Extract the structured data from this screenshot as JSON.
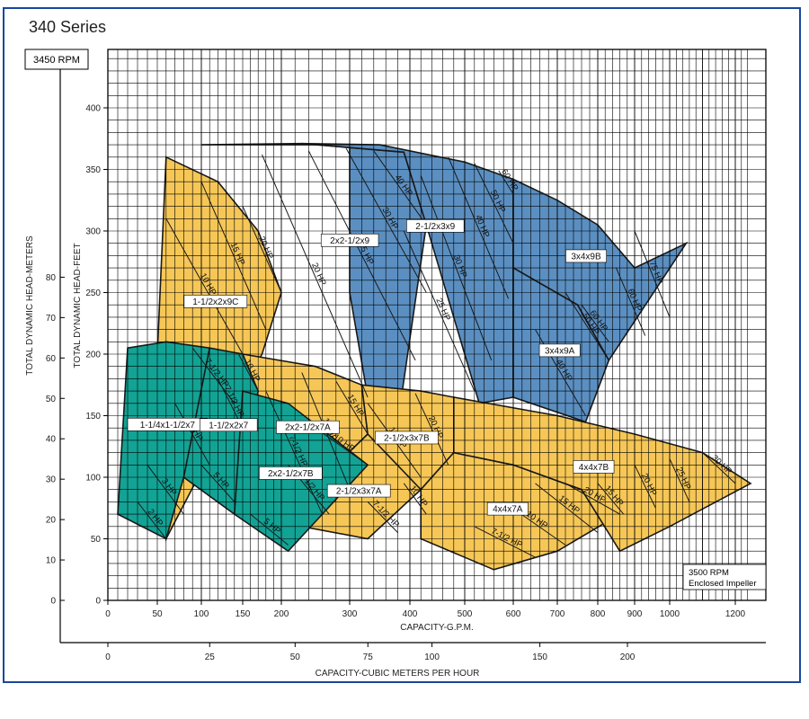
{
  "page": {
    "title": "340 Series"
  },
  "chart_data": {
    "type": "area",
    "title": "340 Series",
    "speed_label": "3450 RPM",
    "note_lines": [
      "3500 RPM",
      "Enclosed Impeller"
    ],
    "colors": {
      "frame": "#17479e",
      "blue": "#5b8fc1",
      "yellow": "#f6c757",
      "teal": "#12a395",
      "grid": "#000000"
    },
    "axes": {
      "x_gpm": {
        "label": "CAPACITY-G.P.M.",
        "range": [
          0,
          1250
        ],
        "ticks": [
          0,
          50,
          100,
          150,
          200,
          300,
          400,
          500,
          600,
          700,
          800,
          900,
          1000,
          1200
        ],
        "scale": "custom"
      },
      "x_m3h": {
        "label": "CAPACITY-CUBIC METERS PER HOUR",
        "ticks": [
          0,
          25,
          50,
          75,
          100,
          150,
          200
        ]
      },
      "y_feet": {
        "label": "TOTAL DYNAMIC HEAD-FEET",
        "range": [
          0,
          400
        ],
        "ticks": [
          0,
          50,
          100,
          150,
          200,
          250,
          300,
          350,
          400
        ]
      },
      "y_meters": {
        "label": "TOTAL DYNAMIC HEAD-METERS",
        "ticks": [
          0,
          10,
          20,
          30,
          40,
          50,
          60,
          70,
          80
        ]
      },
      "grid": true
    },
    "zones": [
      {
        "name": "2x2-1/2x9",
        "color": "blue",
        "boundary": [
          [
            100,
            370
          ],
          [
            230,
            371
          ],
          [
            390,
            364
          ],
          [
            430,
            305
          ],
          [
            380,
            145
          ],
          [
            330,
            165
          ],
          [
            300,
            250
          ],
          [
            300,
            370
          ]
        ],
        "hp_lines": [
          {
            "label": "20 HP",
            "points": [
              [
                175,
                362
              ],
              [
                330,
                165
              ]
            ]
          },
          {
            "label": "25 HP",
            "points": [
              [
                240,
                365
              ],
              [
                410,
                195
              ]
            ]
          },
          {
            "label": "30 HP",
            "points": [
              [
                295,
                367
              ],
              [
                430,
                250
              ]
            ]
          },
          {
            "label": "40 HP",
            "points": [
              [
                340,
                365
              ],
              [
                430,
                305
              ]
            ]
          }
        ]
      },
      {
        "name": "2-1/2x3x9",
        "color": "blue",
        "boundary": [
          [
            230,
            371
          ],
          [
            350,
            370
          ],
          [
            500,
            356
          ],
          [
            600,
            342
          ],
          [
            600,
            165
          ],
          [
            530,
            160
          ],
          [
            430,
            305
          ],
          [
            390,
            364
          ]
        ],
        "hp_lines": [
          {
            "label": "25 HP",
            "points": [
              [
                390,
                300
              ],
              [
                520,
                170
              ]
            ]
          },
          {
            "label": "30 HP",
            "points": [
              [
                420,
                345
              ],
              [
                555,
                195
              ]
            ]
          },
          {
            "label": "40 HP",
            "points": [
              [
                470,
                360
              ],
              [
                590,
                245
              ]
            ]
          },
          {
            "label": "50 HP",
            "points": [
              [
                520,
                355
              ],
              [
                600,
                290
              ]
            ]
          },
          {
            "label": "60 HP",
            "points": [
              [
                570,
                349
              ],
              [
                600,
                330
              ]
            ]
          }
        ]
      },
      {
        "name": "3x4x9B",
        "color": "blue",
        "boundary": [
          [
            600,
            342
          ],
          [
            700,
            325
          ],
          [
            800,
            305
          ],
          [
            900,
            270
          ],
          [
            1050,
            290
          ],
          [
            830,
            195
          ],
          [
            750,
            240
          ],
          [
            600,
            270
          ]
        ],
        "hp_lines": [
          {
            "label": "75 HP",
            "points": [
              [
                900,
                300
              ],
              [
                1000,
                230
              ]
            ]
          },
          {
            "label": "60 HP",
            "points": [
              [
                850,
                270
              ],
              [
                930,
                215
              ]
            ]
          }
        ]
      },
      {
        "name": "3x4x9A",
        "color": "blue",
        "boundary": [
          [
            600,
            270
          ],
          [
            750,
            240
          ],
          [
            830,
            195
          ],
          [
            770,
            145
          ],
          [
            600,
            165
          ]
        ],
        "hp_lines": [
          {
            "label": "40 HP",
            "points": [
              [
                650,
                220
              ],
              [
                770,
                150
              ]
            ]
          },
          {
            "label": "50 HP",
            "points": [
              [
                720,
                250
              ],
              [
                830,
                195
              ]
            ]
          },
          {
            "label": "60 HP",
            "points": [
              [
                760,
                240
              ],
              [
                830,
                210
              ]
            ]
          }
        ]
      },
      {
        "name": "1-1/2x2x9C",
        "color": "yellow",
        "boundary": [
          [
            60,
            360
          ],
          [
            120,
            340
          ],
          [
            170,
            300
          ],
          [
            200,
            250
          ],
          [
            175,
            200
          ],
          [
            60,
            50
          ],
          [
            50,
            200
          ]
        ],
        "hp_lines": [
          {
            "label": "10 HP",
            "points": [
              [
                60,
                310
              ],
              [
                150,
                200
              ]
            ]
          },
          {
            "label": "15 HP",
            "points": [
              [
                100,
                340
              ],
              [
                180,
                220
              ]
            ]
          },
          {
            "label": "20 HP",
            "points": [
              [
                150,
                320
              ],
              [
                200,
                250
              ]
            ]
          }
        ]
      },
      {
        "name": "2x2-1/2x7A",
        "color": "yellow",
        "boundary": [
          [
            150,
            200
          ],
          [
            250,
            190
          ],
          [
            320,
            175
          ],
          [
            330,
            135
          ],
          [
            280,
            110
          ],
          [
            210,
            75
          ],
          [
            150,
            100
          ]
        ],
        "hp_lines": [
          {
            "label": "7-1/2 HP",
            "points": [
              [
                180,
                170
              ],
              [
                260,
                70
              ]
            ]
          },
          {
            "label": "10 HP",
            "points": [
              [
                230,
                185
              ],
              [
                300,
                90
              ]
            ]
          },
          {
            "label": "15 HP",
            "points": [
              [
                280,
                178
              ],
              [
                330,
                135
              ]
            ]
          }
        ]
      },
      {
        "name": "2-1/2x3x7B",
        "color": "yellow",
        "boundary": [
          [
            320,
            175
          ],
          [
            420,
            170
          ],
          [
            480,
            165
          ],
          [
            480,
            120
          ],
          [
            420,
            90
          ],
          [
            330,
            70
          ],
          [
            330,
            135
          ]
        ],
        "hp_lines": [
          {
            "label": "15 HP",
            "points": [
              [
                330,
                160
              ],
              [
                420,
                100
              ]
            ]
          },
          {
            "label": "20 HP",
            "points": [
              [
                410,
                168
              ],
              [
                470,
                110
              ]
            ]
          }
        ]
      },
      {
        "name": "2-1/2x3x7A",
        "color": "yellow",
        "boundary": [
          [
            280,
            110
          ],
          [
            330,
            135
          ],
          [
            420,
            90
          ],
          [
            330,
            50
          ],
          [
            230,
            60
          ]
        ],
        "hp_lines": [
          {
            "label": "7-1/2 HP",
            "points": [
              [
                330,
                80
              ],
              [
                380,
                55
              ]
            ]
          },
          {
            "label": "10 HP",
            "points": [
              [
                390,
                95
              ],
              [
                430,
                70
              ]
            ]
          }
        ]
      },
      {
        "name": "4x4x7A",
        "color": "yellow",
        "boundary": [
          [
            420,
            90
          ],
          [
            480,
            120
          ],
          [
            600,
            110
          ],
          [
            760,
            90
          ],
          [
            860,
            70
          ],
          [
            700,
            40
          ],
          [
            560,
            25
          ],
          [
            420,
            50
          ]
        ],
        "hp_lines": [
          {
            "label": "7-1/2 HP",
            "points": [
              [
                520,
                60
              ],
              [
                650,
                35
              ]
            ]
          },
          {
            "label": "10 HP",
            "points": [
              [
                580,
                80
              ],
              [
                720,
                45
              ]
            ]
          },
          {
            "label": "15 HP",
            "points": [
              [
                650,
                95
              ],
              [
                800,
                55
              ]
            ]
          },
          {
            "label": "20 HP",
            "points": [
              [
                720,
                95
              ],
              [
                860,
                70
              ]
            ]
          }
        ]
      },
      {
        "name": "4x4x7B",
        "color": "yellow",
        "boundary": [
          [
            480,
            165
          ],
          [
            700,
            150
          ],
          [
            900,
            135
          ],
          [
            1100,
            120
          ],
          [
            1250,
            95
          ],
          [
            1000,
            60
          ],
          [
            860,
            40
          ],
          [
            760,
            90
          ],
          [
            600,
            110
          ],
          [
            480,
            120
          ]
        ],
        "hp_lines": [
          {
            "label": "15 HP",
            "points": [
              [
                800,
                95
              ],
              [
                870,
                70
              ]
            ]
          },
          {
            "label": "20 HP",
            "points": [
              [
                900,
                110
              ],
              [
                960,
                75
              ]
            ]
          },
          {
            "label": "25 HP",
            "points": [
              [
                1000,
                115
              ],
              [
                1060,
                80
              ]
            ]
          },
          {
            "label": "30 HP",
            "points": [
              [
                1100,
                120
              ],
              [
                1200,
                95
              ]
            ]
          }
        ]
      },
      {
        "name": "1-1/4x1-1/2x7",
        "color": "teal",
        "boundary": [
          [
            20,
            205
          ],
          [
            60,
            210
          ],
          [
            110,
            205
          ],
          [
            100,
            160
          ],
          [
            80,
            100
          ],
          [
            60,
            50
          ],
          [
            10,
            70
          ]
        ],
        "hp_lines": [
          {
            "label": "2 HP",
            "points": [
              [
                30,
                80
              ],
              [
                60,
                50
              ]
            ]
          },
          {
            "label": "3 HP",
            "points": [
              [
                40,
                110
              ],
              [
                80,
                70
              ]
            ]
          },
          {
            "label": "5 HP",
            "points": [
              [
                70,
                160
              ],
              [
                110,
                110
              ]
            ]
          },
          {
            "label": "7-1/2 HP",
            "points": [
              [
                90,
                205
              ],
              [
                140,
                160
              ]
            ]
          }
        ]
      },
      {
        "name": "1-1/2x2x7",
        "color": "teal",
        "boundary": [
          [
            110,
            205
          ],
          [
            150,
            200
          ],
          [
            170,
            170
          ],
          [
            150,
            110
          ],
          [
            140,
            70
          ],
          [
            80,
            100
          ]
        ],
        "hp_lines": [
          {
            "label": "5 HP",
            "points": [
              [
                100,
                110
              ],
              [
                140,
                80
              ]
            ]
          },
          {
            "label": "7-1/2 HP",
            "points": [
              [
                120,
                180
              ],
              [
                150,
                140
              ]
            ]
          },
          {
            "label": "10 HP",
            "points": [
              [
                145,
                200
              ],
              [
                170,
                170
              ]
            ]
          }
        ]
      },
      {
        "name": "2x2-1/2x7B",
        "color": "teal",
        "boundary": [
          [
            150,
            170
          ],
          [
            210,
            160
          ],
          [
            330,
            110
          ],
          [
            260,
            70
          ],
          [
            210,
            40
          ],
          [
            140,
            70
          ]
        ],
        "hp_lines": [
          {
            "label": "5 HP",
            "points": [
              [
                160,
                70
              ],
              [
                210,
                45
              ]
            ]
          },
          {
            "label": "7-1/2 HP",
            "points": [
              [
                210,
                110
              ],
              [
                270,
                70
              ]
            ]
          },
          {
            "label": "10 HP",
            "points": [
              [
                250,
                140
              ],
              [
                330,
                110
              ]
            ]
          }
        ]
      }
    ]
  }
}
